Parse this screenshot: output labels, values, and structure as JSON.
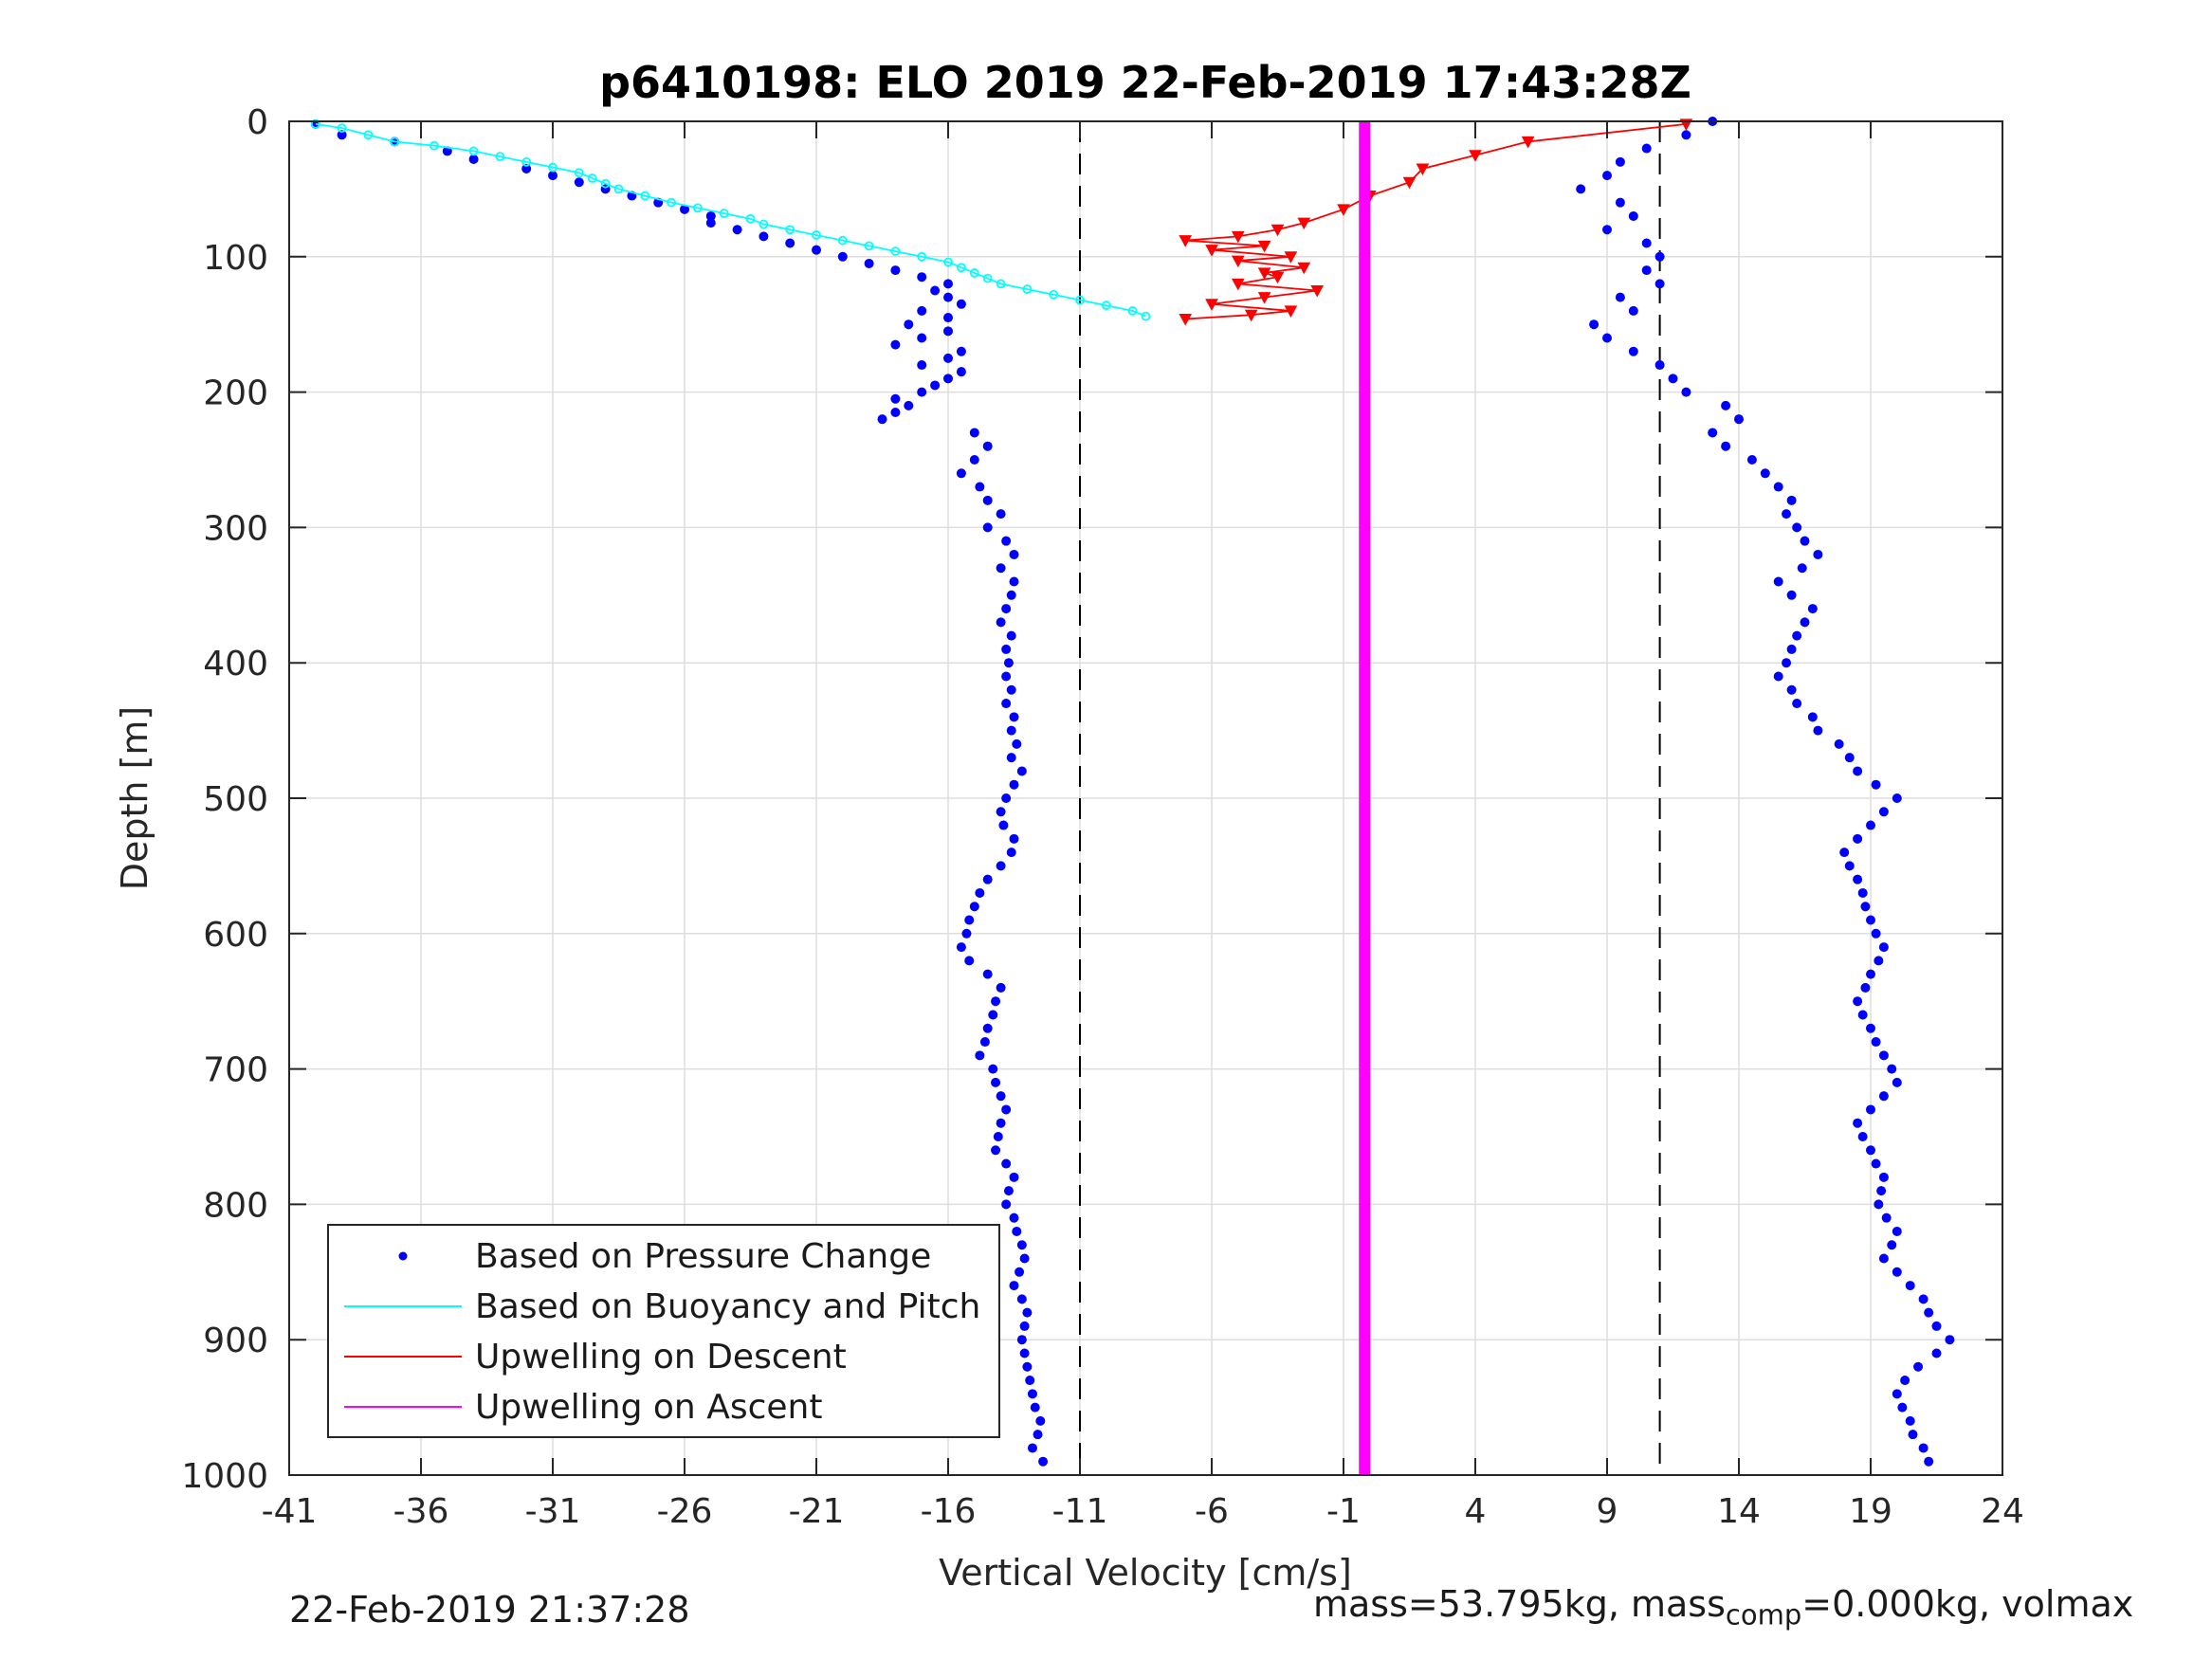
{
  "chart_data": {
    "type": "scatter",
    "title": "p6410198: ELO 2019 22-Feb-2019 17:43:28Z",
    "xlabel": "Vertical Velocity [cm/s]",
    "ylabel": "Depth [m]",
    "xlim": [
      -41,
      24
    ],
    "ylim": [
      0,
      1000
    ],
    "y_reversed": true,
    "grid": true,
    "xticks": [
      -41,
      -36,
      -31,
      -26,
      -21,
      -16,
      -11,
      -6,
      -1,
      4,
      9,
      14,
      19,
      24
    ],
    "yticks": [
      0,
      100,
      200,
      300,
      400,
      500,
      600,
      700,
      800,
      900,
      1000
    ],
    "reference_lines": [
      -11,
      11
    ],
    "legend_position": "bottom-left",
    "series": [
      {
        "name": "Based on Pressure Change",
        "style": "dots",
        "color": "#0000ff",
        "descent_depth": [
          2,
          10,
          15,
          22,
          28,
          35,
          40,
          45,
          50,
          55,
          60,
          65,
          70,
          75,
          80,
          85,
          90,
          95,
          100,
          105,
          110,
          115,
          120,
          125,
          130,
          135,
          140,
          145,
          150,
          155,
          160,
          165,
          170,
          175,
          180,
          185,
          190,
          195,
          200,
          205,
          210,
          215,
          220,
          230,
          240,
          250,
          260,
          270,
          280,
          290,
          300,
          310,
          320,
          330,
          340,
          350,
          360,
          370,
          380,
          390,
          400,
          410,
          420,
          430,
          440,
          450,
          460,
          470,
          480,
          490,
          500,
          510,
          520,
          530,
          540,
          550,
          560,
          570,
          580,
          590,
          600,
          610,
          620,
          630,
          640,
          650,
          660,
          670,
          680,
          690,
          700,
          710,
          720,
          730,
          740,
          750,
          760,
          770,
          780,
          790,
          800,
          810,
          820,
          830,
          840,
          850,
          860,
          870,
          880,
          890,
          900,
          910,
          920,
          930,
          940,
          950,
          960,
          970,
          980,
          990
        ],
        "descent_velocity": [
          -40,
          -39,
          -37,
          -35,
          -34,
          -32,
          -31,
          -30,
          -29,
          -28,
          -27,
          -26,
          -25,
          -25,
          -24,
          -23,
          -22,
          -21,
          -20,
          -19,
          -18,
          -17,
          -16,
          -16.5,
          -16,
          -15.5,
          -17,
          -16,
          -17.5,
          -16,
          -17,
          -18,
          -15.5,
          -16,
          -17,
          -15.5,
          -16,
          -16.5,
          -17,
          -18,
          -17.5,
          -18,
          -18.5,
          -15,
          -14.5,
          -15,
          -15.5,
          -14.8,
          -14.5,
          -14,
          -14.5,
          -13.8,
          -13.5,
          -14,
          -13.5,
          -13.6,
          -13.8,
          -14,
          -13.6,
          -13.8,
          -13.7,
          -13.8,
          -13.6,
          -13.8,
          -13.5,
          -13.6,
          -13.4,
          -13.6,
          -13.2,
          -13.5,
          -13.8,
          -14,
          -13.9,
          -13.5,
          -13.6,
          -14,
          -14.5,
          -14.8,
          -15,
          -15.2,
          -15.3,
          -15.5,
          -15.2,
          -14.5,
          -14,
          -14.2,
          -14.3,
          -14.5,
          -14.6,
          -14.8,
          -14.3,
          -14.2,
          -14,
          -13.8,
          -14,
          -14.1,
          -14.2,
          -13.8,
          -13.5,
          -13.7,
          -13.8,
          -13.5,
          -13.4,
          -13.2,
          -13.1,
          -13.3,
          -13.5,
          -13.2,
          -13,
          -13.1,
          -13.2,
          -13.1,
          -13,
          -12.9,
          -12.8,
          -12.7,
          -12.5,
          -12.6,
          -12.8,
          -12.4
        ],
        "ascent_depth": [
          0,
          10,
          20,
          30,
          40,
          50,
          60,
          70,
          80,
          90,
          100,
          110,
          120,
          130,
          140,
          150,
          160,
          170,
          180,
          190,
          200,
          210,
          220,
          230,
          240,
          250,
          260,
          270,
          280,
          290,
          300,
          310,
          320,
          330,
          340,
          350,
          360,
          370,
          380,
          390,
          400,
          410,
          420,
          430,
          440,
          450,
          460,
          470,
          480,
          490,
          500,
          510,
          520,
          530,
          540,
          550,
          560,
          570,
          580,
          590,
          600,
          610,
          620,
          630,
          640,
          650,
          660,
          670,
          680,
          690,
          700,
          710,
          720,
          730,
          740,
          750,
          760,
          770,
          780,
          790,
          800,
          810,
          820,
          830,
          840,
          850,
          860,
          870,
          880,
          890,
          900,
          910,
          920,
          930,
          940,
          950,
          960,
          970,
          980,
          990
        ],
        "ascent_velocity": [
          13,
          12,
          10.5,
          9.5,
          9,
          8,
          9.5,
          10,
          9,
          10.5,
          11,
          10.5,
          11,
          9.5,
          10,
          8.5,
          9,
          10,
          11,
          11.5,
          12,
          13.5,
          14,
          13,
          13.5,
          14.5,
          15,
          15.5,
          16,
          15.8,
          16.2,
          16.5,
          17,
          16.4,
          15.5,
          16,
          16.8,
          16.5,
          16.2,
          16,
          15.8,
          15.5,
          16,
          16.2,
          16.8,
          17,
          17.8,
          18.2,
          18.5,
          19.2,
          20,
          19.5,
          19,
          18.5,
          18,
          18.2,
          18.5,
          18.7,
          18.8,
          19,
          19.2,
          19.5,
          19.3,
          19,
          18.8,
          18.5,
          18.7,
          19,
          19.2,
          19.5,
          19.8,
          20,
          19.5,
          19,
          18.5,
          18.7,
          19,
          19.2,
          19.5,
          19.4,
          19.3,
          19.6,
          20,
          19.8,
          19.5,
          20,
          20.5,
          21,
          21.2,
          21.5,
          22,
          21.5,
          20.8,
          20.3,
          20,
          20.2,
          20.5,
          20.6,
          21,
          21.2
        ]
      },
      {
        "name": "Based on Buoyancy and Pitch",
        "style": "line-circles",
        "color": "#00ffff",
        "depth": [
          2,
          5,
          10,
          15,
          18,
          22,
          26,
          30,
          34,
          38,
          42,
          46,
          50,
          55,
          60,
          64,
          68,
          72,
          76,
          80,
          84,
          88,
          92,
          96,
          100,
          104,
          108,
          112,
          116,
          120,
          124,
          128,
          132,
          136,
          140,
          144
        ],
        "velocity": [
          -40,
          -39,
          -38,
          -37,
          -35.5,
          -34,
          -33,
          -32,
          -31,
          -30,
          -29.5,
          -29,
          -28.5,
          -27.5,
          -26.5,
          -25.5,
          -24.5,
          -23.5,
          -23,
          -22,
          -21,
          -20,
          -19,
          -18,
          -17,
          -16,
          -15.5,
          -15,
          -14.5,
          -14,
          -13,
          -12,
          -11,
          -10,
          -9,
          -8.5
        ]
      },
      {
        "name": "Upwelling on Descent",
        "style": "line-triangles",
        "color": "#ff0000",
        "depth": [
          2,
          15,
          25,
          35,
          45,
          55,
          65,
          75,
          80,
          85,
          88,
          92,
          95,
          100,
          103,
          108,
          112,
          115,
          120,
          125,
          130,
          135,
          140,
          143,
          146
        ],
        "velocity": [
          12,
          6,
          4,
          2,
          1.5,
          0,
          -1,
          -2.5,
          -3.5,
          -5,
          -7,
          -4,
          -6,
          -3,
          -5,
          -2.5,
          -4,
          -3.5,
          -5,
          -2,
          -4,
          -6,
          -3,
          -4.5,
          -7
        ]
      },
      {
        "name": "Upwelling on Ascent",
        "style": "thick-line",
        "color": "#ff00ff",
        "depth": [
          0,
          1000
        ],
        "velocity": [
          -0.2,
          -0.2
        ]
      }
    ]
  },
  "footer": {
    "timestamp": "22-Feb-2019 21:37:28",
    "mass_text": "mass=53.795kg, mass",
    "mass_sub": "comp",
    "mass_tail": "=0.000kg, volmax"
  }
}
